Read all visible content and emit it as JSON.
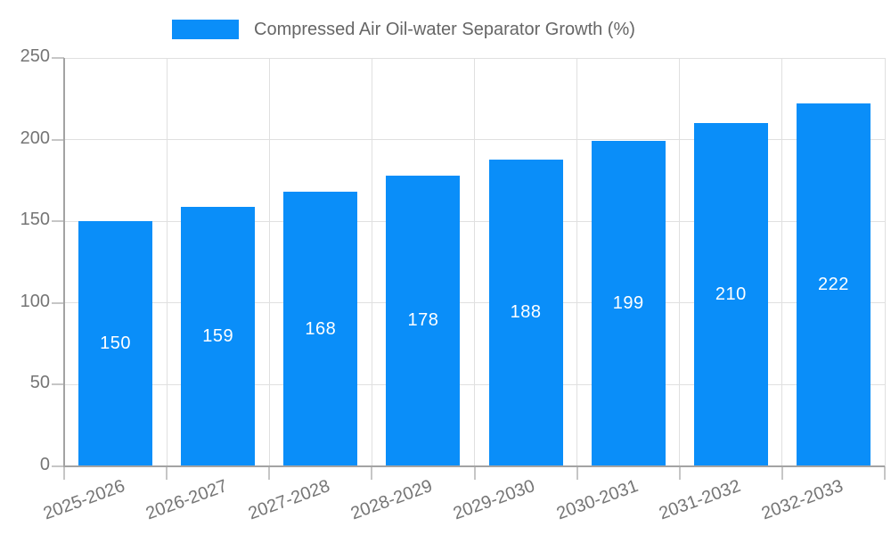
{
  "chart_data": {
    "type": "bar",
    "title": "Compressed Air Oil-water Separator Growth (%)",
    "categories": [
      "2025-2026",
      "2026-2027",
      "2027-2028",
      "2028-2029",
      "2029-2030",
      "2030-2031",
      "2031-2032",
      "2032-2033"
    ],
    "values": [
      150,
      159,
      168,
      178,
      188,
      199,
      210,
      222
    ],
    "xlabel": "",
    "ylabel": "",
    "ylim": [
      0,
      250
    ],
    "yticks": [
      0,
      50,
      100,
      150,
      200,
      250
    ],
    "grid": true,
    "value_labels": "centered-white-inside-bars",
    "legend": {
      "label": "Compressed Air Oil-water Separator Growth (%)",
      "position": "top"
    },
    "colors": {
      "bar": "#0a8ef9",
      "value_label": "#ffffff",
      "grid": "#e0e0e0",
      "axis_line": "#a3a3a3",
      "tick": "#c6c6c6",
      "tick_label": "#757575",
      "legend_text": "#666666",
      "background": "#ffffff"
    }
  }
}
